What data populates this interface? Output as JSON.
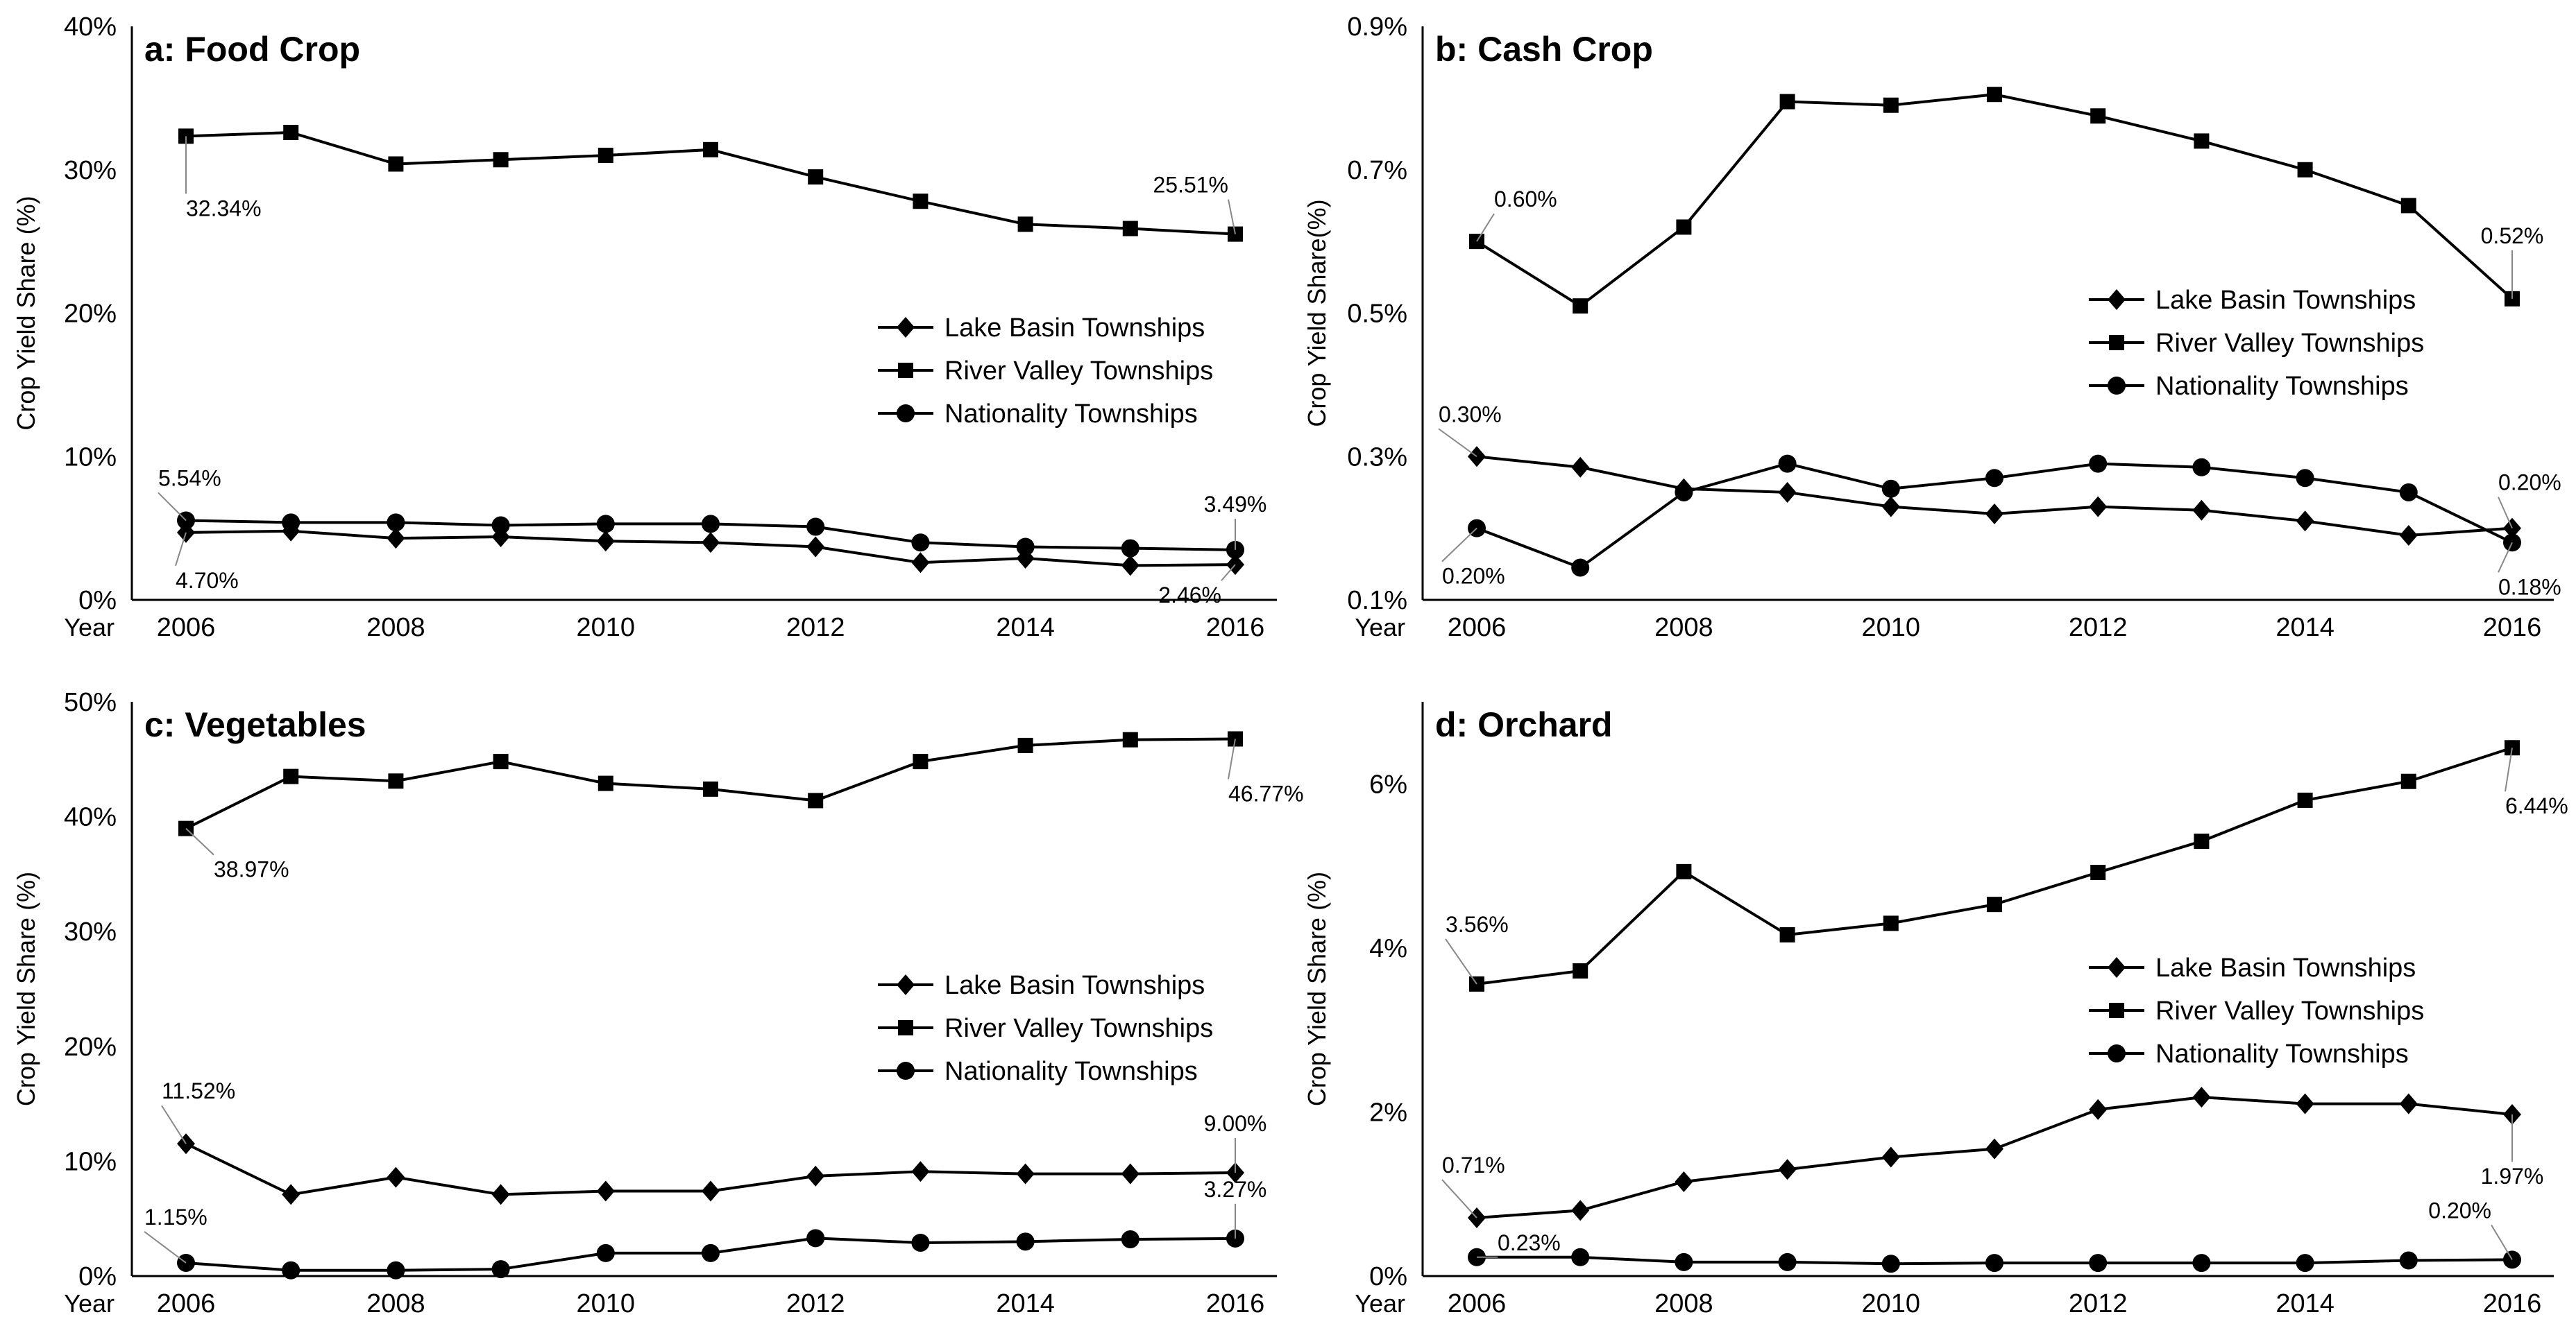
{
  "chart_data": [
    {
      "type": "line",
      "title": "a: Food Crop",
      "ylabel": "Crop Yield Share (%)",
      "xlabel": "Year",
      "ylim": [
        0,
        40
      ],
      "yticks": [
        "0%",
        "10%",
        "20%",
        "30%",
        "40%"
      ],
      "x": [
        2006,
        2007,
        2008,
        2009,
        2010,
        2011,
        2012,
        2013,
        2014,
        2015,
        2016
      ],
      "xtick_labels": [
        "2006",
        "2008",
        "2010",
        "2012",
        "2014",
        "2016"
      ],
      "legend": "right-middle",
      "series": [
        {
          "name": "Lake Basin Townships",
          "marker": "diamond",
          "values": [
            4.7,
            4.8,
            4.3,
            4.4,
            4.1,
            4.0,
            3.7,
            2.6,
            2.9,
            2.4,
            2.46
          ]
        },
        {
          "name": "River Valley Townships",
          "marker": "square",
          "values": [
            32.34,
            32.6,
            30.4,
            30.7,
            31.0,
            31.4,
            29.5,
            27.8,
            26.2,
            25.9,
            25.51
          ]
        },
        {
          "name": "Nationality Townships",
          "marker": "circle",
          "values": [
            5.54,
            5.4,
            5.4,
            5.2,
            5.3,
            5.3,
            5.1,
            4.0,
            3.7,
            3.6,
            3.49
          ]
        }
      ],
      "annotations": [
        {
          "text": "32.34%",
          "series": 1,
          "point": 0
        },
        {
          "text": "25.51%",
          "series": 1,
          "point": 10
        },
        {
          "text": "5.54%",
          "series": 2,
          "point": 0
        },
        {
          "text": "4.70%",
          "series": 0,
          "point": 0
        },
        {
          "text": "3.49%",
          "series": 2,
          "point": 10
        },
        {
          "text": "2.46%",
          "series": 0,
          "point": 10
        }
      ]
    },
    {
      "type": "line",
      "title": "b: Cash Crop",
      "ylabel": "Crop Yield Share(%)",
      "xlabel": "Year",
      "ylim": [
        0.1,
        0.9
      ],
      "yticks": [
        "0.1%",
        "0.3%",
        "0.5%",
        "0.7%",
        "0.9%"
      ],
      "x": [
        2006,
        2007,
        2008,
        2009,
        2010,
        2011,
        2012,
        2013,
        2014,
        2015,
        2016
      ],
      "xtick_labels": [
        "2006",
        "2008",
        "2010",
        "2012",
        "2014",
        "2016"
      ],
      "legend": "right-middle",
      "series": [
        {
          "name": "Lake Basin Townships",
          "marker": "diamond",
          "values": [
            0.3,
            0.285,
            0.255,
            0.25,
            0.23,
            0.22,
            0.23,
            0.225,
            0.21,
            0.19,
            0.2
          ]
        },
        {
          "name": "River Valley Townships",
          "marker": "square",
          "values": [
            0.6,
            0.51,
            0.62,
            0.795,
            0.79,
            0.805,
            0.775,
            0.74,
            0.7,
            0.65,
            0.52
          ]
        },
        {
          "name": "Nationality Townships",
          "marker": "circle",
          "values": [
            0.2,
            0.145,
            0.25,
            0.29,
            0.255,
            0.27,
            0.29,
            0.285,
            0.27,
            0.25,
            0.18
          ]
        }
      ],
      "annotations": [
        {
          "text": "0.60%",
          "series": 1,
          "point": 0
        },
        {
          "text": "0.52%",
          "series": 1,
          "point": 10
        },
        {
          "text": "0.30%",
          "series": 0,
          "point": 0
        },
        {
          "text": "0.20%",
          "series": 2,
          "point": 0
        },
        {
          "text": "0.20%",
          "series": 0,
          "point": 10
        },
        {
          "text": "0.18%",
          "series": 2,
          "point": 10
        }
      ]
    },
    {
      "type": "line",
      "title": "c: Vegetables",
      "ylabel": "Crop Yield Share (%)",
      "xlabel": "Year",
      "ylim": [
        0,
        50
      ],
      "yticks": [
        "0%",
        "10%",
        "20%",
        "30%",
        "40%",
        "50%"
      ],
      "x": [
        2006,
        2007,
        2008,
        2009,
        2010,
        2011,
        2012,
        2013,
        2014,
        2015,
        2016
      ],
      "xtick_labels": [
        "2006",
        "2008",
        "2010",
        "2012",
        "2014",
        "2016"
      ],
      "legend": "right-middle",
      "series": [
        {
          "name": "Lake Basin Townships",
          "marker": "diamond",
          "values": [
            11.52,
            7.1,
            8.6,
            7.1,
            7.4,
            7.4,
            8.7,
            9.1,
            8.9,
            8.9,
            9.0
          ]
        },
        {
          "name": "River Valley Townships",
          "marker": "square",
          "values": [
            38.97,
            43.5,
            43.1,
            44.8,
            42.9,
            42.4,
            41.4,
            44.8,
            46.2,
            46.7,
            46.77
          ]
        },
        {
          "name": "Nationality Townships",
          "marker": "circle",
          "values": [
            1.15,
            0.5,
            0.5,
            0.6,
            2.0,
            2.0,
            3.3,
            2.9,
            3.0,
            3.2,
            3.27
          ]
        }
      ],
      "annotations": [
        {
          "text": "38.97%",
          "series": 1,
          "point": 0
        },
        {
          "text": "46.77%",
          "series": 1,
          "point": 10
        },
        {
          "text": "11.52%",
          "series": 0,
          "point": 0
        },
        {
          "text": "9.00%",
          "series": 0,
          "point": 10
        },
        {
          "text": "1.15%",
          "series": 2,
          "point": 0
        },
        {
          "text": "3.27%",
          "series": 2,
          "point": 10
        }
      ]
    },
    {
      "type": "line",
      "title": "d: Orchard",
      "ylabel": "Crop Yield Share (%)",
      "xlabel": "Year",
      "ylim": [
        0,
        7
      ],
      "yticks": [
        "0%",
        "2%",
        "4%",
        "6%"
      ],
      "ytick_values": [
        0,
        2,
        4,
        6
      ],
      "x": [
        2006,
        2007,
        2008,
        2009,
        2010,
        2011,
        2012,
        2013,
        2014,
        2015,
        2016
      ],
      "xtick_labels": [
        "2006",
        "2008",
        "2010",
        "2012",
        "2014",
        "2016"
      ],
      "legend": "right-middle",
      "series": [
        {
          "name": "Lake Basin Townships",
          "marker": "diamond",
          "values": [
            0.71,
            0.8,
            1.15,
            1.3,
            1.45,
            1.55,
            2.03,
            2.18,
            2.1,
            2.1,
            1.97
          ]
        },
        {
          "name": "River Valley Townships",
          "marker": "square",
          "values": [
            3.56,
            3.72,
            4.93,
            4.16,
            4.3,
            4.53,
            4.92,
            5.3,
            5.8,
            6.03,
            6.44
          ]
        },
        {
          "name": "Nationality Townships",
          "marker": "circle",
          "values": [
            0.23,
            0.23,
            0.17,
            0.17,
            0.15,
            0.16,
            0.16,
            0.16,
            0.16,
            0.19,
            0.2
          ]
        }
      ],
      "annotations": [
        {
          "text": "3.56%",
          "series": 1,
          "point": 0
        },
        {
          "text": "6.44%",
          "series": 1,
          "point": 10
        },
        {
          "text": "0.71%",
          "series": 0,
          "point": 0
        },
        {
          "text": "0.23%",
          "series": 2,
          "point": 0
        },
        {
          "text": "1.97%",
          "series": 0,
          "point": 10
        },
        {
          "text": "0.20%",
          "series": 2,
          "point": 10
        }
      ]
    }
  ]
}
